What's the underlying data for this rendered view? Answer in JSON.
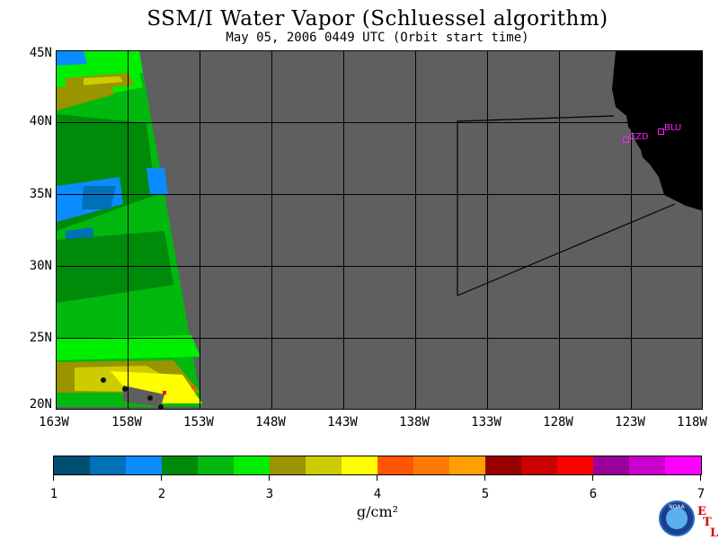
{
  "header": {
    "title": "SSM/I Water Vapor (Schluessel algorithm)",
    "subtitle": "May 05, 2006  0449 UTC  (Orbit start time)"
  },
  "map": {
    "lat_labels": [
      "45N",
      "40N",
      "35N",
      "30N",
      "25N",
      "20N"
    ],
    "lon_labels": [
      "163W",
      "158W",
      "153W",
      "148W",
      "143W",
      "138W",
      "133W",
      "128W",
      "123W",
      "118W"
    ],
    "sites": [
      {
        "label": "CZD"
      },
      {
        "label": "BLU"
      }
    ],
    "colors": {
      "no_data": "#5f5f5f",
      "land": "#000000",
      "grid": "#000000",
      "site": "#ff20ff"
    }
  },
  "colorbar": {
    "tick_labels": [
      "1",
      "2",
      "3",
      "4",
      "5",
      "6",
      "7"
    ],
    "units": "g/cm²",
    "colors": [
      "#004f73",
      "#0070b8",
      "#0a8cff",
      "#008a0a",
      "#00b80e",
      "#00ee00",
      "#999400",
      "#cccc00",
      "#ffff00",
      "#ff5500",
      "#ff7a00",
      "#ffa000",
      "#990000",
      "#cc0000",
      "#ff0000",
      "#990099",
      "#cc00cc",
      "#ff00ff"
    ]
  },
  "branding": {
    "logo_text": "NOAA",
    "etl_letters": [
      "E",
      "T",
      "L"
    ]
  }
}
